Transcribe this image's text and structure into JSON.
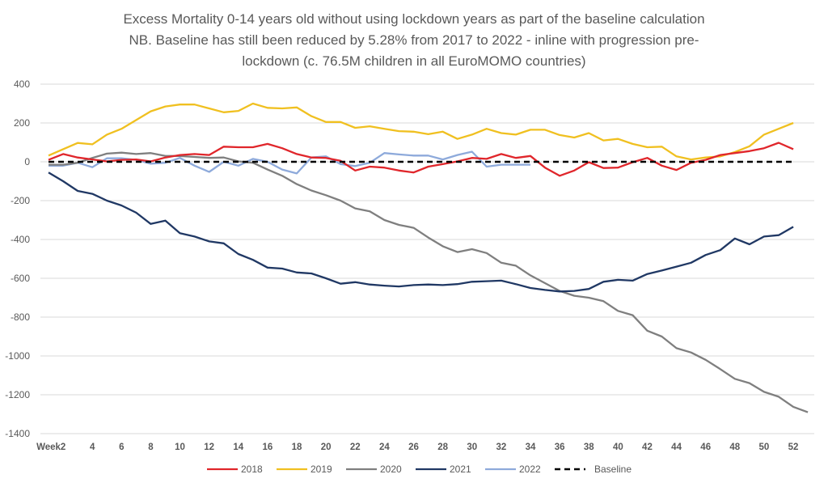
{
  "chart_data": {
    "type": "line",
    "title_lines": [
      "Excess Mortality 0-14 years old without using lockdown years as part of the baseline calculation",
      "NB. Baseline has still been reduced by 5.28% from 2017 to 2022 - inline with progression pre-",
      "lockdown (c. 76.5M children in all EuroMOMO countries)"
    ],
    "xlabel": "",
    "ylabel": "",
    "ylim": [
      -1400,
      400
    ],
    "yticks": [
      400,
      200,
      0,
      -200,
      -400,
      -600,
      -800,
      -1000,
      -1200,
      -1400
    ],
    "ytick_labels": [
      "400",
      "200",
      "0",
      "-200",
      "-400",
      "-600",
      "-800",
      "-1000",
      "-1200",
      "-1400"
    ],
    "xlim": [
      1,
      52
    ],
    "xticks": [
      1,
      2,
      4,
      6,
      8,
      10,
      12,
      14,
      16,
      18,
      20,
      22,
      24,
      26,
      28,
      30,
      32,
      34,
      36,
      38,
      40,
      42,
      44,
      46,
      48,
      50,
      52
    ],
    "xtick_labels": [
      "Week",
      "2",
      "4",
      "6",
      "8",
      "10",
      "12",
      "14",
      "16",
      "18",
      "20",
      "22",
      "24",
      "26",
      "28",
      "30",
      "32",
      "34",
      "36",
      "38",
      "40",
      "42",
      "44",
      "46",
      "48",
      "50",
      "52"
    ],
    "grid": true,
    "legend_position": "bottom",
    "series": [
      {
        "name": "2018",
        "color": "#e0262b",
        "dashed": false,
        "values": [
          10,
          40,
          22,
          12,
          2,
          10,
          12,
          2,
          22,
          35,
          40,
          35,
          78,
          75,
          75,
          92,
          70,
          40,
          22,
          20,
          5,
          -45,
          -25,
          -30,
          -45,
          -55,
          -25,
          -12,
          2,
          20,
          15,
          40,
          20,
          30,
          -30,
          -72,
          -45,
          -2,
          -32,
          -30,
          -2,
          20,
          -20,
          -42,
          -5,
          10,
          35,
          45,
          55,
          70,
          98,
          65
        ]
      },
      {
        "name": "2019",
        "color": "#f0c020",
        "dashed": false,
        "values": [
          32,
          65,
          97,
          90,
          140,
          170,
          215,
          260,
          285,
          295,
          295,
          275,
          255,
          262,
          300,
          278,
          275,
          280,
          235,
          205,
          205,
          175,
          183,
          170,
          158,
          155,
          142,
          155,
          118,
          140,
          170,
          148,
          140,
          165,
          165,
          138,
          125,
          148,
          110,
          118,
          92,
          75,
          78,
          28,
          12,
          22,
          28,
          50,
          80,
          140,
          170,
          200
        ]
      },
      {
        "name": "2020",
        "color": "#7f7f7f",
        "dashed": false,
        "values": [
          -15,
          -15,
          -5,
          20,
          42,
          47,
          40,
          45,
          30,
          30,
          25,
          20,
          22,
          2,
          -5,
          -40,
          -72,
          -115,
          -148,
          -172,
          -200,
          -240,
          -255,
          -300,
          -325,
          -340,
          -390,
          -435,
          -465,
          -450,
          -470,
          -520,
          -535,
          -585,
          -625,
          -665,
          -690,
          -700,
          -718,
          -768,
          -790,
          -870,
          -900,
          -960,
          -982,
          -1020,
          -1068,
          -1118,
          -1140,
          -1185,
          -1210,
          -1262,
          -1290
        ]
      },
      {
        "name": "2021",
        "color": "#203864",
        "dashed": false,
        "values": [
          -55,
          -100,
          -150,
          -165,
          -200,
          -225,
          -262,
          -320,
          -303,
          -368,
          -385,
          -410,
          -420,
          -475,
          -505,
          -545,
          -550,
          -570,
          -575,
          -600,
          -628,
          -620,
          -632,
          -638,
          -642,
          -635,
          -632,
          -635,
          -630,
          -618,
          -615,
          -612,
          -630,
          -650,
          -660,
          -668,
          -665,
          -655,
          -618,
          -608,
          -612,
          -578,
          -560,
          -540,
          -520,
          -480,
          -455,
          -395,
          -425,
          -385,
          -378,
          -335
        ]
      },
      {
        "name": "2022",
        "color": "#8eaadb",
        "dashed": false,
        "values": [
          -20,
          -20,
          -5,
          -28,
          18,
          18,
          10,
          -10,
          -5,
          20,
          -20,
          -52,
          0,
          -20,
          15,
          0,
          -40,
          -60,
          22,
          28,
          -12,
          -22,
          -5,
          45,
          38,
          32,
          32,
          12,
          35,
          52,
          -25,
          -15,
          -15,
          -15
        ]
      },
      {
        "name": "Baseline",
        "color": "#000000",
        "dashed": true,
        "values": [
          0,
          0,
          0,
          0,
          0,
          0,
          0,
          0,
          0,
          0,
          0,
          0,
          0,
          0,
          0,
          0,
          0,
          0,
          0,
          0,
          0,
          0,
          0,
          0,
          0,
          0,
          0,
          0,
          0,
          0,
          0,
          0,
          0,
          0,
          0,
          0,
          0,
          0,
          0,
          0,
          0,
          0,
          0,
          0,
          0,
          0,
          0,
          0,
          0,
          0,
          0,
          0
        ]
      }
    ]
  }
}
